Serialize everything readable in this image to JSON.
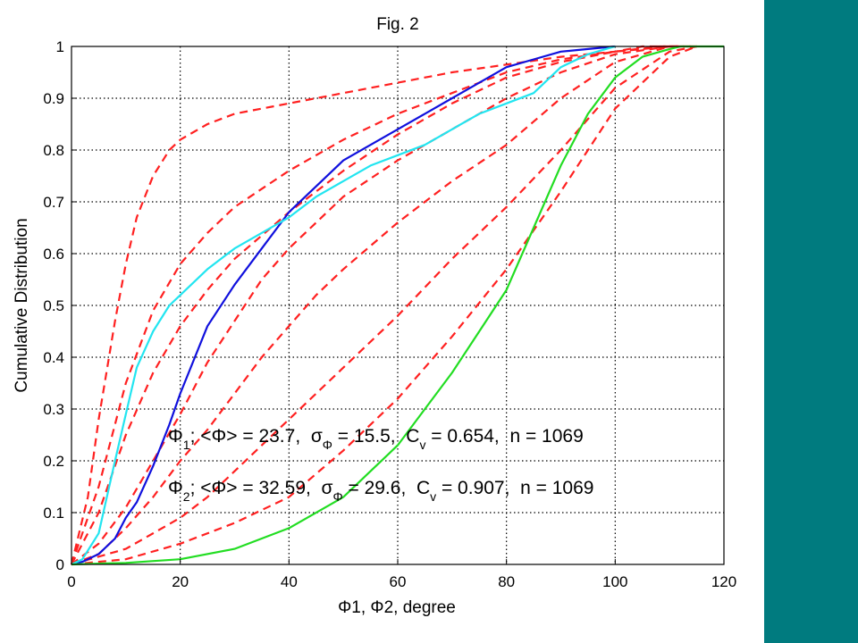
{
  "colors": {
    "band": "#007b7f",
    "series": [
      "#ff2020",
      "#1010dd",
      "#22e5f0",
      "#22dd22"
    ]
  },
  "chart_data": {
    "type": "line",
    "title": "Fig. 2",
    "xlabel": "Φ1, Φ2, degree",
    "ylabel": "Cumulative Distribution",
    "xlim": [
      0,
      120
    ],
    "ylim": [
      0,
      1
    ],
    "grid": true,
    "xticks": [
      "0",
      "20",
      "40",
      "60",
      "80",
      "100",
      "120"
    ],
    "yticks": [
      "0",
      "0.1",
      "0.2",
      "0.3",
      "0.4",
      "0.5",
      "0.6",
      "0.7",
      "0.8",
      "0.9",
      "1"
    ],
    "annotations": [
      {
        "label": "Φ",
        "sub": "1",
        "rest1": "; <Φ> = 23.7,  σ",
        "sub2": "Φ",
        "rest2": " = 15.5,  C",
        "sub3": "v",
        "rest3": " = 0.654,  n = 1069"
      },
      {
        "label": "Φ",
        "sub": "2",
        "rest1": "; <Φ> = 32.59,  σ",
        "sub2": "Φ",
        "rest2": " = 29.6,  C",
        "sub3": "v",
        "rest3": " = 0.907,  n = 1069"
      }
    ],
    "series": [
      {
        "style": "dashed",
        "color": "#ff2020",
        "x": [
          0,
          3,
          5,
          8,
          10,
          12,
          15,
          18,
          20,
          25,
          30,
          40,
          50,
          60,
          70,
          80,
          90,
          100,
          105,
          110
        ],
        "y": [
          0,
          0.13,
          0.28,
          0.47,
          0.58,
          0.67,
          0.75,
          0.8,
          0.82,
          0.85,
          0.87,
          0.89,
          0.91,
          0.93,
          0.95,
          0.965,
          0.98,
          0.99,
          1.0,
          1.0
        ]
      },
      {
        "style": "dashed",
        "color": "#ff2020",
        "x": [
          0,
          5,
          10,
          15,
          20,
          25,
          30,
          40,
          50,
          60,
          70,
          80,
          90,
          100,
          108,
          112
        ],
        "y": [
          0,
          0.15,
          0.35,
          0.49,
          0.58,
          0.64,
          0.69,
          0.76,
          0.82,
          0.87,
          0.91,
          0.95,
          0.975,
          0.99,
          1.0,
          1.0
        ]
      },
      {
        "style": "dashed",
        "color": "#ff2020",
        "x": [
          0,
          5,
          10,
          15,
          20,
          25,
          30,
          40,
          50,
          60,
          70,
          80,
          90,
          100,
          110,
          112
        ],
        "y": [
          0,
          0.1,
          0.25,
          0.37,
          0.46,
          0.53,
          0.59,
          0.68,
          0.76,
          0.83,
          0.89,
          0.94,
          0.97,
          0.99,
          1.0,
          1.0
        ]
      },
      {
        "style": "dashed",
        "color": "#ff2020",
        "x": [
          0,
          5,
          10,
          15,
          20,
          25,
          30,
          35,
          40,
          50,
          60,
          70,
          80,
          90,
          100,
          110,
          115
        ],
        "y": [
          0,
          0.04,
          0.11,
          0.2,
          0.29,
          0.39,
          0.47,
          0.55,
          0.61,
          0.71,
          0.78,
          0.84,
          0.9,
          0.95,
          0.985,
          1.0,
          1.0
        ]
      },
      {
        "style": "dashed",
        "color": "#ff2020",
        "x": [
          0,
          5,
          10,
          15,
          20,
          25,
          30,
          35,
          40,
          45,
          50,
          60,
          70,
          80,
          90,
          100,
          110,
          115
        ],
        "y": [
          0,
          0.02,
          0.07,
          0.13,
          0.2,
          0.26,
          0.33,
          0.4,
          0.46,
          0.52,
          0.57,
          0.66,
          0.74,
          0.81,
          0.9,
          0.97,
          1.0,
          1.0
        ]
      },
      {
        "style": "dashed",
        "color": "#ff2020",
        "x": [
          0,
          10,
          20,
          25,
          30,
          35,
          40,
          45,
          50,
          60,
          70,
          80,
          90,
          100,
          110,
          115
        ],
        "y": [
          0,
          0.03,
          0.09,
          0.13,
          0.18,
          0.23,
          0.28,
          0.33,
          0.38,
          0.48,
          0.59,
          0.69,
          0.8,
          0.92,
          0.99,
          1.0
        ]
      },
      {
        "style": "dashed",
        "color": "#ff2020",
        "x": [
          0,
          10,
          20,
          30,
          40,
          50,
          55,
          60,
          70,
          80,
          90,
          100,
          110,
          115
        ],
        "y": [
          0,
          0.01,
          0.04,
          0.08,
          0.13,
          0.22,
          0.27,
          0.32,
          0.44,
          0.57,
          0.72,
          0.88,
          0.98,
          1.0
        ]
      },
      {
        "style": "solid",
        "color": "#1010dd",
        "x": [
          0,
          2,
          5,
          8,
          10,
          12,
          15,
          18,
          20,
          25,
          30,
          35,
          40,
          45,
          50,
          55,
          60,
          65,
          70,
          75,
          80,
          85,
          90,
          95,
          100
        ],
        "y": [
          0,
          0.005,
          0.02,
          0.05,
          0.09,
          0.12,
          0.19,
          0.27,
          0.33,
          0.46,
          0.54,
          0.61,
          0.68,
          0.73,
          0.78,
          0.81,
          0.84,
          0.87,
          0.9,
          0.93,
          0.96,
          0.975,
          0.99,
          0.995,
          1.0
        ]
      },
      {
        "style": "solid",
        "color": "#22e5f0",
        "x": [
          0,
          2,
          5,
          8,
          10,
          12,
          15,
          18,
          20,
          25,
          30,
          35,
          40,
          45,
          50,
          55,
          60,
          65,
          70,
          75,
          80,
          85,
          88,
          90,
          95,
          100
        ],
        "y": [
          0,
          0.01,
          0.06,
          0.2,
          0.29,
          0.38,
          0.45,
          0.5,
          0.52,
          0.57,
          0.61,
          0.64,
          0.67,
          0.71,
          0.74,
          0.77,
          0.79,
          0.81,
          0.84,
          0.87,
          0.89,
          0.91,
          0.94,
          0.96,
          0.985,
          1.0
        ]
      },
      {
        "style": "solid",
        "color": "#22dd22",
        "x": [
          0,
          10,
          20,
          30,
          40,
          50,
          55,
          60,
          65,
          70,
          75,
          80,
          85,
          90,
          95,
          100,
          105,
          110,
          112,
          120
        ],
        "y": [
          0,
          0.003,
          0.01,
          0.03,
          0.07,
          0.13,
          0.18,
          0.23,
          0.3,
          0.37,
          0.45,
          0.53,
          0.65,
          0.77,
          0.87,
          0.94,
          0.98,
          0.995,
          1.0,
          1.0
        ]
      }
    ]
  }
}
